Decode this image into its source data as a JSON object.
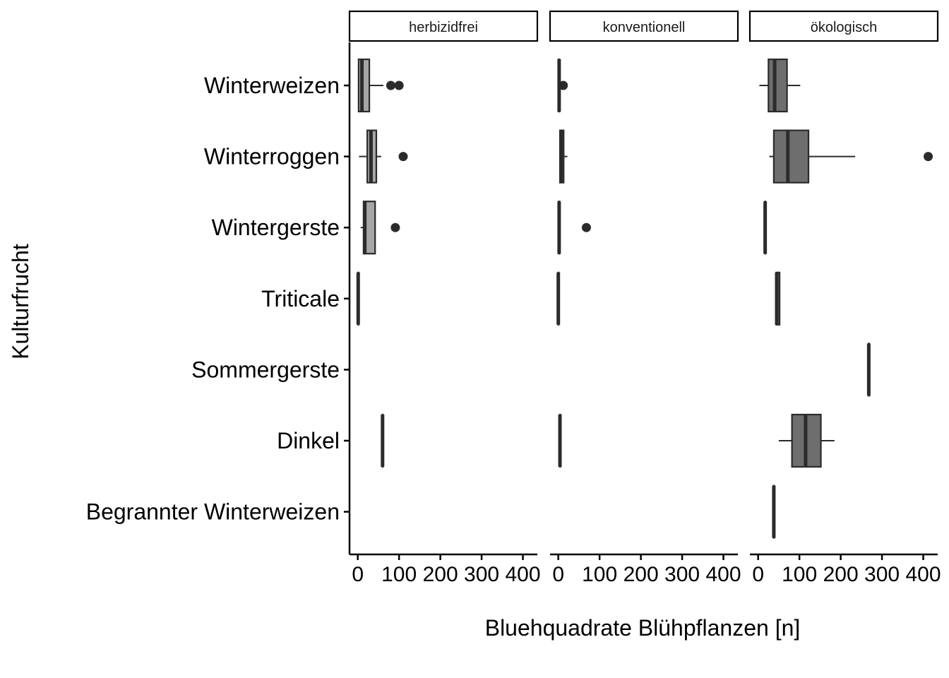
{
  "chart_data": {
    "type": "boxplot",
    "orientation": "horizontal",
    "xlabel": "Bluehquadrate Blühpflanzen [n]",
    "ylabel": "Kulturfrucht",
    "xlim": [
      -20,
      435
    ],
    "xticks": [
      0,
      100,
      200,
      300,
      400
    ],
    "xtick_labels": [
      "0",
      "100",
      "200",
      "300",
      "400"
    ],
    "categories": [
      "Winterweizen",
      "Winterroggen",
      "Wintergerste",
      "Triticale",
      "Sommergerste",
      "Dinkel",
      "Begrannter Winterweizen"
    ],
    "colors": {
      "herbizidfrei": "#a6a6a6",
      "konventionell": "#8c8c8c",
      "ökologisch": "#6e6e6e",
      "outline": "#2b2b2b",
      "strip_border": "#000000",
      "axis": "#000000"
    },
    "facets": [
      {
        "label": "herbizidfrei",
        "boxes": [
          {
            "category": "Winterweizen",
            "min": 0,
            "q1": 2,
            "median": 10,
            "q3": 28,
            "max": 62,
            "outliers": [
              80,
              100
            ]
          },
          {
            "category": "Winterroggen",
            "min": 3,
            "q1": 23,
            "median": 32,
            "q3": 45,
            "max": 57,
            "outliers": [
              110
            ]
          },
          {
            "category": "Wintergerste",
            "min": 7,
            "q1": 14,
            "median": 17,
            "q3": 42,
            "max": 42,
            "outliers": [
              91
            ]
          },
          {
            "category": "Triticale",
            "min": 1,
            "q1": 1,
            "median": 1,
            "q3": 1,
            "max": 1,
            "outliers": []
          },
          {
            "category": "Dinkel",
            "min": 60,
            "q1": 60,
            "median": 60,
            "q3": 60,
            "max": 60,
            "outliers": []
          }
        ]
      },
      {
        "label": "konventionell",
        "boxes": [
          {
            "category": "Winterweizen",
            "min": 0,
            "q1": 1,
            "median": 2,
            "q3": 3,
            "max": 5,
            "outliers": [
              12
            ]
          },
          {
            "category": "Winterroggen",
            "min": 3,
            "q1": 4,
            "median": 7,
            "q3": 13,
            "max": 22,
            "outliers": []
          },
          {
            "category": "Wintergerste",
            "min": 1,
            "q1": 1,
            "median": 2,
            "q3": 3,
            "max": 3,
            "outliers": [
              68
            ]
          },
          {
            "category": "Triticale",
            "min": 0,
            "q1": 0,
            "median": 0,
            "q3": 0,
            "max": 0,
            "outliers": []
          },
          {
            "category": "Dinkel",
            "min": 4,
            "q1": 4,
            "median": 4,
            "q3": 4,
            "max": 4,
            "outliers": []
          }
        ]
      },
      {
        "label": "ökologisch",
        "boxes": [
          {
            "category": "Winterweizen",
            "min": 3,
            "q1": 25,
            "median": 40,
            "q3": 70,
            "max": 102,
            "outliers": []
          },
          {
            "category": "Winterroggen",
            "min": 27,
            "q1": 38,
            "median": 72,
            "q3": 122,
            "max": 235,
            "outliers": [
              412
            ]
          },
          {
            "category": "Wintergerste",
            "min": 17,
            "q1": 17,
            "median": 17,
            "q3": 17,
            "max": 17,
            "outliers": []
          },
          {
            "category": "Triticale",
            "min": 43,
            "q1": 44,
            "median": 45,
            "q3": 52,
            "max": 52,
            "outliers": []
          },
          {
            "category": "Sommergerste",
            "min": 268,
            "q1": 268,
            "median": 268,
            "q3": 268,
            "max": 268,
            "outliers": []
          },
          {
            "category": "Dinkel",
            "min": 50,
            "q1": 82,
            "median": 115,
            "q3": 152,
            "max": 185,
            "outliers": []
          },
          {
            "category": "Begrannter Winterweizen",
            "min": 38,
            "q1": 38,
            "median": 38,
            "q3": 38,
            "max": 38,
            "outliers": []
          }
        ]
      }
    ]
  }
}
